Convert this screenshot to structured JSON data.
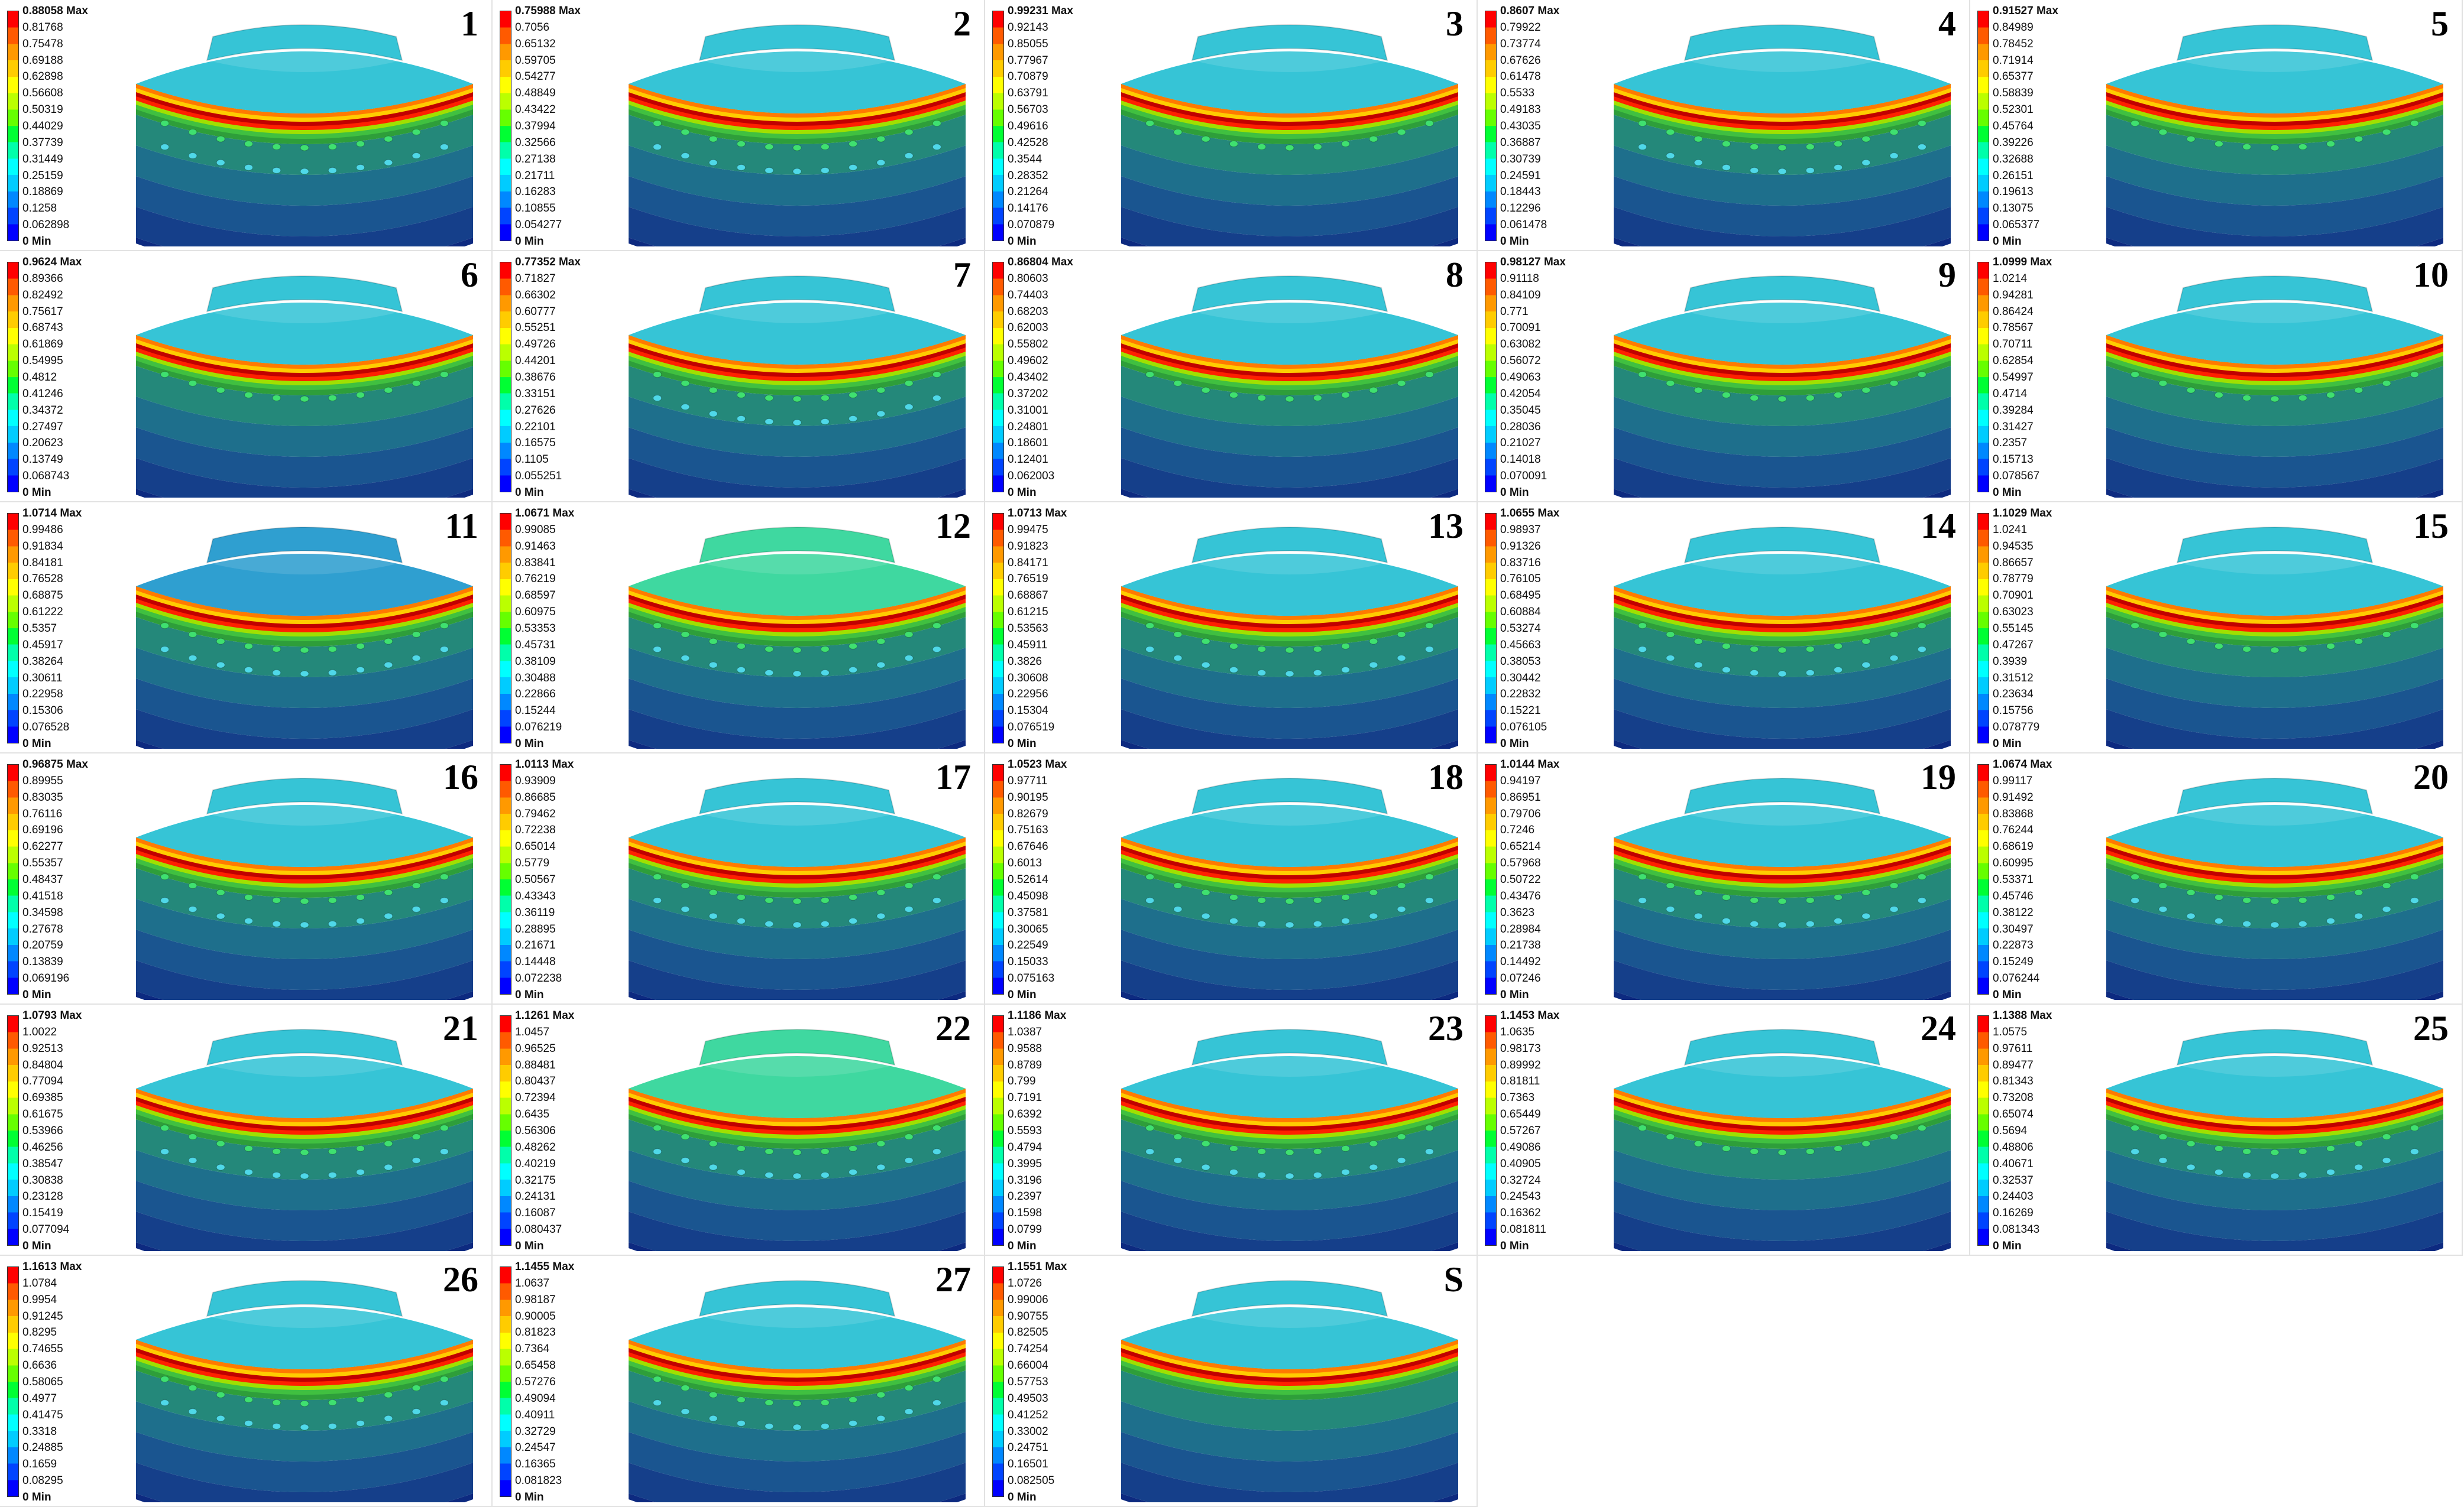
{
  "panels": [
    {
      "number": "1",
      "max_label": "0.88058 Max",
      "values": [
        "0.81768",
        "0.75478",
        "0.69188",
        "0.62898",
        "0.56608",
        "0.50319",
        "0.44029",
        "0.37739",
        "0.31449",
        "0.25159",
        "0.18869",
        "0.1258",
        "0.062898"
      ],
      "min_label": "0 Min",
      "top_color": "#36c4d6",
      "holes": 2
    },
    {
      "number": "2",
      "max_label": "0.75988 Max",
      "values": [
        "0.7056",
        "0.65132",
        "0.59705",
        "0.54277",
        "0.48849",
        "0.43422",
        "0.37994",
        "0.32566",
        "0.27138",
        "0.21711",
        "0.16283",
        "0.10855",
        "0.054277"
      ],
      "min_label": "0 Min",
      "top_color": "#36c4d6",
      "holes": 2
    },
    {
      "number": "3",
      "max_label": "0.99231 Max",
      "values": [
        "0.92143",
        "0.85055",
        "0.77967",
        "0.70879",
        "0.63791",
        "0.56703",
        "0.49616",
        "0.42528",
        "0.3544",
        "0.28352",
        "0.21264",
        "0.14176",
        "0.070879"
      ],
      "min_label": "0 Min",
      "top_color": "#36c4d6",
      "holes": 1
    },
    {
      "number": "4",
      "max_label": "0.8607 Max",
      "values": [
        "0.79922",
        "0.73774",
        "0.67626",
        "0.61478",
        "0.5533",
        "0.49183",
        "0.43035",
        "0.36887",
        "0.30739",
        "0.24591",
        "0.18443",
        "0.12296",
        "0.061478"
      ],
      "min_label": "0 Min",
      "top_color": "#36c4d6",
      "holes": 2
    },
    {
      "number": "5",
      "max_label": "0.91527 Max",
      "values": [
        "0.84989",
        "0.78452",
        "0.71914",
        "0.65377",
        "0.58839",
        "0.52301",
        "0.45764",
        "0.39226",
        "0.32688",
        "0.26151",
        "0.19613",
        "0.13075",
        "0.065377"
      ],
      "min_label": "0 Min",
      "top_color": "#36c4d6",
      "holes": 1
    },
    {
      "number": "6",
      "max_label": "0.9624 Max",
      "values": [
        "0.89366",
        "0.82492",
        "0.75617",
        "0.68743",
        "0.61869",
        "0.54995",
        "0.4812",
        "0.41246",
        "0.34372",
        "0.27497",
        "0.20623",
        "0.13749",
        "0.068743"
      ],
      "min_label": "0 Min",
      "top_color": "#36c4d6",
      "holes": 1
    },
    {
      "number": "7",
      "max_label": "0.77352 Max",
      "values": [
        "0.71827",
        "0.66302",
        "0.60777",
        "0.55251",
        "0.49726",
        "0.44201",
        "0.38676",
        "0.33151",
        "0.27626",
        "0.22101",
        "0.16575",
        "0.1105",
        "0.055251"
      ],
      "min_label": "0 Min",
      "top_color": "#36c4d6",
      "holes": 2
    },
    {
      "number": "8",
      "max_label": "0.86804 Max",
      "values": [
        "0.80603",
        "0.74403",
        "0.68203",
        "0.62003",
        "0.55802",
        "0.49602",
        "0.43402",
        "0.37202",
        "0.31001",
        "0.24801",
        "0.18601",
        "0.12401",
        "0.062003"
      ],
      "min_label": "0 Min",
      "top_color": "#36c4d6",
      "holes": 1
    },
    {
      "number": "9",
      "max_label": "0.98127 Max",
      "values": [
        "0.91118",
        "0.84109",
        "0.771",
        "0.70091",
        "0.63082",
        "0.56072",
        "0.49063",
        "0.42054",
        "0.35045",
        "0.28036",
        "0.21027",
        "0.14018",
        "0.070091"
      ],
      "min_label": "0 Min",
      "top_color": "#36c4d6",
      "holes": 1
    },
    {
      "number": "10",
      "max_label": "1.0999 Max",
      "values": [
        "1.0214",
        "0.94281",
        "0.86424",
        "0.78567",
        "0.70711",
        "0.62854",
        "0.54997",
        "0.4714",
        "0.39284",
        "0.31427",
        "0.2357",
        "0.15713",
        "0.078567"
      ],
      "min_label": "0 Min",
      "top_color": "#36c4d6",
      "holes": 1
    },
    {
      "number": "11",
      "max_label": "1.0714 Max",
      "values": [
        "0.99486",
        "0.91834",
        "0.84181",
        "0.76528",
        "0.68875",
        "0.61222",
        "0.5357",
        "0.45917",
        "0.38264",
        "0.30611",
        "0.22958",
        "0.15306",
        "0.076528"
      ],
      "min_label": "0 Min",
      "top_color": "#2f9fd0",
      "holes": 2
    },
    {
      "number": "12",
      "max_label": "1.0671 Max",
      "values": [
        "0.99085",
        "0.91463",
        "0.83841",
        "0.76219",
        "0.68597",
        "0.60975",
        "0.53353",
        "0.45731",
        "0.38109",
        "0.30488",
        "0.22866",
        "0.15244",
        "0.076219"
      ],
      "min_label": "0 Min",
      "top_color": "#3fd8a0",
      "holes": 2
    },
    {
      "number": "13",
      "max_label": "1.0713 Max",
      "values": [
        "0.99475",
        "0.91823",
        "0.84171",
        "0.76519",
        "0.68867",
        "0.61215",
        "0.53563",
        "0.45911",
        "0.3826",
        "0.30608",
        "0.22956",
        "0.15304",
        "0.076519"
      ],
      "min_label": "0 Min",
      "top_color": "#36c4d6",
      "holes": 2
    },
    {
      "number": "14",
      "max_label": "1.0655 Max",
      "values": [
        "0.98937",
        "0.91326",
        "0.83716",
        "0.76105",
        "0.68495",
        "0.60884",
        "0.53274",
        "0.45663",
        "0.38053",
        "0.30442",
        "0.22832",
        "0.15221",
        "0.076105"
      ],
      "min_label": "0 Min",
      "top_color": "#36c4d6",
      "holes": 2
    },
    {
      "number": "15",
      "max_label": "1.1029 Max",
      "values": [
        "1.0241",
        "0.94535",
        "0.86657",
        "0.78779",
        "0.70901",
        "0.63023",
        "0.55145",
        "0.47267",
        "0.3939",
        "0.31512",
        "0.23634",
        "0.15756",
        "0.078779"
      ],
      "min_label": "0 Min",
      "top_color": "#36c4d6",
      "holes": 1
    },
    {
      "number": "16",
      "max_label": "0.96875 Max",
      "values": [
        "0.89955",
        "0.83035",
        "0.76116",
        "0.69196",
        "0.62277",
        "0.55357",
        "0.48437",
        "0.41518",
        "0.34598",
        "0.27678",
        "0.20759",
        "0.13839",
        "0.069196"
      ],
      "min_label": "0 Min",
      "top_color": "#36c4d6",
      "holes": 2
    },
    {
      "number": "17",
      "max_label": "1.0113 Max",
      "values": [
        "0.93909",
        "0.86685",
        "0.79462",
        "0.72238",
        "0.65014",
        "0.5779",
        "0.50567",
        "0.43343",
        "0.36119",
        "0.28895",
        "0.21671",
        "0.14448",
        "0.072238"
      ],
      "min_label": "0 Min",
      "top_color": "#36c4d6",
      "holes": 2
    },
    {
      "number": "18",
      "max_label": "1.0523 Max",
      "values": [
        "0.97711",
        "0.90195",
        "0.82679",
        "0.75163",
        "0.67646",
        "0.6013",
        "0.52614",
        "0.45098",
        "0.37581",
        "0.30065",
        "0.22549",
        "0.15033",
        "0.075163"
      ],
      "min_label": "0 Min",
      "top_color": "#36c4d6",
      "holes": 2
    },
    {
      "number": "19",
      "max_label": "1.0144 Max",
      "values": [
        "0.94197",
        "0.86951",
        "0.79706",
        "0.7246",
        "0.65214",
        "0.57968",
        "0.50722",
        "0.43476",
        "0.3623",
        "0.28984",
        "0.21738",
        "0.14492",
        "0.07246"
      ],
      "min_label": "0 Min",
      "top_color": "#36c4d6",
      "holes": 2
    },
    {
      "number": "20",
      "max_label": "1.0674 Max",
      "values": [
        "0.99117",
        "0.91492",
        "0.83868",
        "0.76244",
        "0.68619",
        "0.60995",
        "0.53371",
        "0.45746",
        "0.38122",
        "0.30497",
        "0.22873",
        "0.15249",
        "0.076244"
      ],
      "min_label": "0 Min",
      "top_color": "#36c4d6",
      "holes": 2
    },
    {
      "number": "21",
      "max_label": "1.0793 Max",
      "values": [
        "1.0022",
        "0.92513",
        "0.84804",
        "0.77094",
        "0.69385",
        "0.61675",
        "0.53966",
        "0.46256",
        "0.38547",
        "0.30838",
        "0.23128",
        "0.15419",
        "0.077094"
      ],
      "min_label": "0 Min",
      "top_color": "#36c4d6",
      "holes": 2
    },
    {
      "number": "22",
      "max_label": "1.1261 Max",
      "values": [
        "1.0457",
        "0.96525",
        "0.88481",
        "0.80437",
        "0.72394",
        "0.6435",
        "0.56306",
        "0.48262",
        "0.40219",
        "0.32175",
        "0.24131",
        "0.16087",
        "0.080437"
      ],
      "min_label": "0 Min",
      "top_color": "#3fd8a0",
      "holes": 2
    },
    {
      "number": "23",
      "max_label": "1.1186 Max",
      "values": [
        "1.0387",
        "0.9588",
        "0.8789",
        "0.799",
        "0.7191",
        "0.6392",
        "0.5593",
        "0.4794",
        "0.3995",
        "0.3196",
        "0.2397",
        "0.1598",
        "0.0799"
      ],
      "min_label": "0 Min",
      "top_color": "#36c4d6",
      "holes": 2
    },
    {
      "number": "24",
      "max_label": "1.1453 Max",
      "values": [
        "1.0635",
        "0.98173",
        "0.89992",
        "0.81811",
        "0.7363",
        "0.65449",
        "0.57267",
        "0.49086",
        "0.40905",
        "0.32724",
        "0.24543",
        "0.16362",
        "0.081811"
      ],
      "min_label": "0 Min",
      "top_color": "#36c4d6",
      "holes": 1
    },
    {
      "number": "25",
      "max_label": "1.1388 Max",
      "values": [
        "1.0575",
        "0.97611",
        "0.89477",
        "0.81343",
        "0.73208",
        "0.65074",
        "0.5694",
        "0.48806",
        "0.40671",
        "0.32537",
        "0.24403",
        "0.16269",
        "0.081343"
      ],
      "min_label": "0 Min",
      "top_color": "#36c4d6",
      "holes": 2
    },
    {
      "number": "26",
      "max_label": "1.1613 Max",
      "values": [
        "1.0784",
        "0.9954",
        "0.91245",
        "0.8295",
        "0.74655",
        "0.6636",
        "0.58065",
        "0.4977",
        "0.41475",
        "0.3318",
        "0.24885",
        "0.1659",
        "0.08295"
      ],
      "min_label": "0 Min",
      "top_color": "#36c4d6",
      "holes": 2
    },
    {
      "number": "27",
      "max_label": "1.1455 Max",
      "values": [
        "1.0637",
        "0.98187",
        "0.90005",
        "0.81823",
        "0.7364",
        "0.65458",
        "0.57276",
        "0.49094",
        "0.40911",
        "0.32729",
        "0.24547",
        "0.16365",
        "0.081823"
      ],
      "min_label": "0 Min",
      "top_color": "#36c4d6",
      "holes": 2
    },
    {
      "number": "S",
      "max_label": "1.1551 Max",
      "values": [
        "1.0726",
        "0.99006",
        "0.90755",
        "0.82505",
        "0.74254",
        "0.66004",
        "0.57753",
        "0.49503",
        "0.41252",
        "0.33002",
        "0.24751",
        "0.16501",
        "0.082505"
      ],
      "min_label": "0 Min",
      "top_color": "#36c4d6",
      "holes": 0
    }
  ],
  "legend_colors": [
    "#ff0000",
    "#ff5a00",
    "#ff9900",
    "#ffcc00",
    "#ffff00",
    "#bbff00",
    "#66ff00",
    "#00ff33",
    "#00ffaa",
    "#00ffff",
    "#00ccff",
    "#0088ff",
    "#0044ff",
    "#0000ff"
  ],
  "band_colors": [
    "#2e9e3a",
    "#24887a",
    "#1e6f8c",
    "#1a5590",
    "#153f8a"
  ],
  "top_ring_colors": [
    "#ff7a00",
    "#ffcc00",
    "#c00000",
    "#ff2000",
    "#a0e000",
    "#40c040"
  ]
}
